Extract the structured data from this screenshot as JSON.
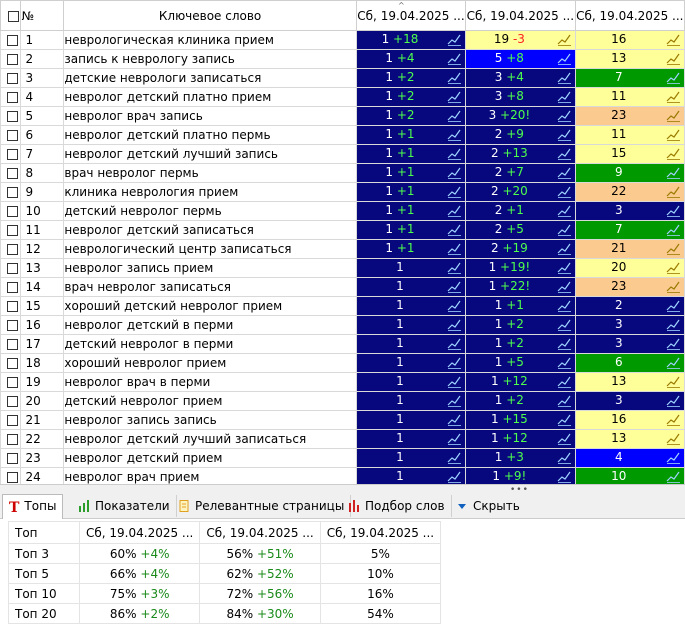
{
  "header": {
    "num": "№",
    "keyword": "Ключевое слово",
    "dates": [
      "Сб, 19.04.2025 ...",
      "Сб, 19.04.2025 ...",
      "Сб, 19.04.2025 ..."
    ]
  },
  "rows": [
    {
      "n": "1",
      "kw": "неврологическая клиника прием",
      "c": [
        {
          "v": "1",
          "d": "+18",
          "bg": "navy"
        },
        {
          "v": "19",
          "d": "-3",
          "bg": "yellow"
        },
        {
          "v": "16",
          "d": "",
          "bg": "yellow"
        }
      ]
    },
    {
      "n": "2",
      "kw": "запись к неврологу запись",
      "c": [
        {
          "v": "1",
          "d": "+4",
          "bg": "navy"
        },
        {
          "v": "5",
          "d": "+8",
          "bg": "blue"
        },
        {
          "v": "13",
          "d": "",
          "bg": "yellow"
        }
      ]
    },
    {
      "n": "3",
      "kw": "детские неврологи записаться",
      "c": [
        {
          "v": "1",
          "d": "+2",
          "bg": "navy"
        },
        {
          "v": "3",
          "d": "+4",
          "bg": "navy"
        },
        {
          "v": "7",
          "d": "",
          "bg": "green"
        }
      ]
    },
    {
      "n": "4",
      "kw": "невролог детский платно прием",
      "c": [
        {
          "v": "1",
          "d": "+2",
          "bg": "navy"
        },
        {
          "v": "3",
          "d": "+8",
          "bg": "navy"
        },
        {
          "v": "11",
          "d": "",
          "bg": "yellow"
        }
      ]
    },
    {
      "n": "5",
      "kw": "невролог врач запись",
      "c": [
        {
          "v": "1",
          "d": "+2",
          "bg": "navy"
        },
        {
          "v": "3",
          "d": "+20!",
          "bg": "navy"
        },
        {
          "v": "23",
          "d": "",
          "bg": "orange"
        }
      ]
    },
    {
      "n": "6",
      "kw": "невролог детский платно пермь",
      "c": [
        {
          "v": "1",
          "d": "+1",
          "bg": "navy"
        },
        {
          "v": "2",
          "d": "+9",
          "bg": "navy"
        },
        {
          "v": "11",
          "d": "",
          "bg": "yellow"
        }
      ]
    },
    {
      "n": "7",
      "kw": "невролог детский лучший запись",
      "c": [
        {
          "v": "1",
          "d": "+1",
          "bg": "navy"
        },
        {
          "v": "2",
          "d": "+13",
          "bg": "navy"
        },
        {
          "v": "15",
          "d": "",
          "bg": "yellow"
        }
      ]
    },
    {
      "n": "8",
      "kw": "врач невролог пермь",
      "c": [
        {
          "v": "1",
          "d": "+1",
          "bg": "navy"
        },
        {
          "v": "2",
          "d": "+7",
          "bg": "navy"
        },
        {
          "v": "9",
          "d": "",
          "bg": "green"
        }
      ]
    },
    {
      "n": "9",
      "kw": "клиника неврология прием",
      "c": [
        {
          "v": "1",
          "d": "+1",
          "bg": "navy"
        },
        {
          "v": "2",
          "d": "+20",
          "bg": "navy"
        },
        {
          "v": "22",
          "d": "",
          "bg": "orange"
        }
      ]
    },
    {
      "n": "10",
      "kw": "детский невролог пермь",
      "c": [
        {
          "v": "1",
          "d": "+1",
          "bg": "navy"
        },
        {
          "v": "2",
          "d": "+1",
          "bg": "navy"
        },
        {
          "v": "3",
          "d": "",
          "bg": "navy"
        }
      ]
    },
    {
      "n": "11",
      "kw": "невролог детский записаться",
      "c": [
        {
          "v": "1",
          "d": "+1",
          "bg": "navy"
        },
        {
          "v": "2",
          "d": "+5",
          "bg": "navy"
        },
        {
          "v": "7",
          "d": "",
          "bg": "green"
        }
      ]
    },
    {
      "n": "12",
      "kw": "неврологический центр записаться",
      "c": [
        {
          "v": "1",
          "d": "+1",
          "bg": "navy"
        },
        {
          "v": "2",
          "d": "+19",
          "bg": "navy"
        },
        {
          "v": "21",
          "d": "",
          "bg": "orange"
        }
      ]
    },
    {
      "n": "13",
      "kw": "невролог запись прием",
      "c": [
        {
          "v": "1",
          "d": "",
          "bg": "navy"
        },
        {
          "v": "1",
          "d": "+19!",
          "bg": "navy"
        },
        {
          "v": "20",
          "d": "",
          "bg": "yellow"
        }
      ]
    },
    {
      "n": "14",
      "kw": "врач невролог записаться",
      "c": [
        {
          "v": "1",
          "d": "",
          "bg": "navy"
        },
        {
          "v": "1",
          "d": "+22!",
          "bg": "navy"
        },
        {
          "v": "23",
          "d": "",
          "bg": "orange"
        }
      ]
    },
    {
      "n": "15",
      "kw": "хороший детский невролог прием",
      "c": [
        {
          "v": "1",
          "d": "",
          "bg": "navy"
        },
        {
          "v": "1",
          "d": "+1",
          "bg": "navy"
        },
        {
          "v": "2",
          "d": "",
          "bg": "navy"
        }
      ]
    },
    {
      "n": "16",
      "kw": "невролог детский в перми",
      "c": [
        {
          "v": "1",
          "d": "",
          "bg": "navy"
        },
        {
          "v": "1",
          "d": "+2",
          "bg": "navy"
        },
        {
          "v": "3",
          "d": "",
          "bg": "navy"
        }
      ]
    },
    {
      "n": "17",
      "kw": "детский невролог в перми",
      "c": [
        {
          "v": "1",
          "d": "",
          "bg": "navy"
        },
        {
          "v": "1",
          "d": "+2",
          "bg": "navy"
        },
        {
          "v": "3",
          "d": "",
          "bg": "navy"
        }
      ]
    },
    {
      "n": "18",
      "kw": "хороший невролог прием",
      "c": [
        {
          "v": "1",
          "d": "",
          "bg": "navy"
        },
        {
          "v": "1",
          "d": "+5",
          "bg": "navy"
        },
        {
          "v": "6",
          "d": "",
          "bg": "green"
        }
      ]
    },
    {
      "n": "19",
      "kw": "невролог врач в перми",
      "c": [
        {
          "v": "1",
          "d": "",
          "bg": "navy"
        },
        {
          "v": "1",
          "d": "+12",
          "bg": "navy"
        },
        {
          "v": "13",
          "d": "",
          "bg": "yellow"
        }
      ]
    },
    {
      "n": "20",
      "kw": "детский невролог прием",
      "c": [
        {
          "v": "1",
          "d": "",
          "bg": "navy"
        },
        {
          "v": "1",
          "d": "+2",
          "bg": "navy"
        },
        {
          "v": "3",
          "d": "",
          "bg": "navy"
        }
      ]
    },
    {
      "n": "21",
      "kw": "невролог запись запись",
      "c": [
        {
          "v": "1",
          "d": "",
          "bg": "navy"
        },
        {
          "v": "1",
          "d": "+15",
          "bg": "navy"
        },
        {
          "v": "16",
          "d": "",
          "bg": "yellow"
        }
      ]
    },
    {
      "n": "22",
      "kw": "невролог детский лучший записаться",
      "c": [
        {
          "v": "1",
          "d": "",
          "bg": "navy"
        },
        {
          "v": "1",
          "d": "+12",
          "bg": "navy"
        },
        {
          "v": "13",
          "d": "",
          "bg": "yellow"
        }
      ]
    },
    {
      "n": "23",
      "kw": "невролог детский прием",
      "c": [
        {
          "v": "1",
          "d": "",
          "bg": "navy"
        },
        {
          "v": "1",
          "d": "+3",
          "bg": "navy"
        },
        {
          "v": "4",
          "d": "",
          "bg": "blue"
        }
      ]
    },
    {
      "n": "24",
      "kw": "невролог врач прием",
      "c": [
        {
          "v": "1",
          "d": "",
          "bg": "navy"
        },
        {
          "v": "1",
          "d": "+9!",
          "bg": "navy"
        },
        {
          "v": "10",
          "d": "",
          "bg": "green"
        }
      ]
    }
  ],
  "tabs": [
    {
      "label": "Топы",
      "icon": "text-t-icon",
      "color": "#cc0000"
    },
    {
      "label": "Показатели",
      "icon": "bar-chart-icon",
      "color": "#2a9d2a"
    },
    {
      "label": "Релевантные страницы",
      "icon": "document-icon",
      "color": "#f0a020"
    },
    {
      "label": "Подбор слов",
      "icon": "bar-chart-red-icon",
      "color": "#d02020"
    },
    {
      "label": "Скрыть",
      "icon": "triangle-down-icon",
      "color": "#1060c0"
    }
  ],
  "tops": {
    "header": {
      "label": "Топ",
      "cols": [
        "Сб, 19.04.2025 ...",
        "Сб, 19.04.2025 ...",
        "Сб, 19.04.2025 ..."
      ]
    },
    "rows": [
      {
        "label": "Топ 3",
        "cells": [
          {
            "v": "60%",
            "d": "+4%"
          },
          {
            "v": "56%",
            "d": "+51%"
          },
          {
            "v": "5%",
            "d": ""
          }
        ]
      },
      {
        "label": "Топ 5",
        "cells": [
          {
            "v": "66%",
            "d": "+4%"
          },
          {
            "v": "62%",
            "d": "+52%"
          },
          {
            "v": "10%",
            "d": ""
          }
        ]
      },
      {
        "label": "Топ 10",
        "cells": [
          {
            "v": "75%",
            "d": "+3%"
          },
          {
            "v": "72%",
            "d": "+56%"
          },
          {
            "v": "16%",
            "d": ""
          }
        ]
      },
      {
        "label": "Топ 20",
        "cells": [
          {
            "v": "86%",
            "d": "+2%"
          },
          {
            "v": "84%",
            "d": "+30%"
          },
          {
            "v": "54%",
            "d": ""
          }
        ]
      }
    ]
  }
}
